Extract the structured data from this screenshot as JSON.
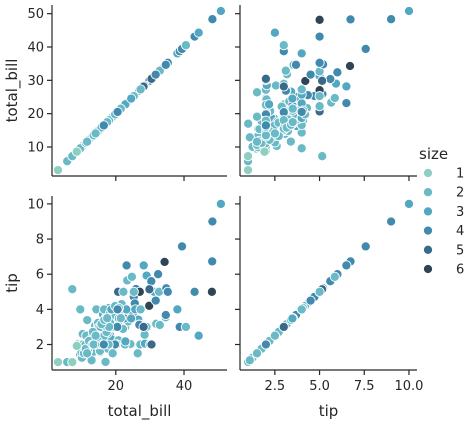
{
  "chart_data": {
    "type": "scatter",
    "kind": "pairplot",
    "variables": [
      "total_bill",
      "tip"
    ],
    "legend": {
      "title": "size",
      "placement": "right",
      "entries": [
        {
          "label": "1",
          "color": "#8ecfc1"
        },
        {
          "label": "2",
          "color": "#6ab9c6"
        },
        {
          "label": "3",
          "color": "#52a7c1"
        },
        {
          "label": "4",
          "color": "#4189ad"
        },
        {
          "label": "5",
          "color": "#3a6a8a"
        },
        {
          "label": "6",
          "color": "#2e4556"
        }
      ]
    },
    "axes": {
      "total_bill": {
        "label": "total_bill",
        "range": [
          1.3,
          52.6
        ],
        "ticks": [
          20,
          40
        ],
        "ticks_y": [
          10,
          20,
          30,
          40,
          50
        ]
      },
      "tip": {
        "label": "tip",
        "range": [
          0.55,
          10.45
        ],
        "ticks": [
          2.5,
          5.0,
          7.5,
          10.0
        ],
        "ticks_y": [
          2,
          4,
          6,
          8,
          10
        ]
      }
    },
    "grid": false,
    "points": {
      "fields": [
        "total_bill",
        "tip",
        "size"
      ],
      "values": [
        [
          3.07,
          1.0,
          1
        ],
        [
          5.75,
          1.0,
          2
        ],
        [
          7.25,
          1.0,
          1
        ],
        [
          7.25,
          5.15,
          2
        ],
        [
          8.77,
          2.0,
          2
        ],
        [
          9.55,
          1.45,
          2
        ],
        [
          10.07,
          1.25,
          2
        ],
        [
          10.34,
          2.0,
          3
        ],
        [
          10.33,
          1.67,
          2
        ],
        [
          11.02,
          1.98,
          2
        ],
        [
          12.43,
          1.8,
          2
        ],
        [
          12.46,
          1.5,
          2
        ],
        [
          13.0,
          2.0,
          2
        ],
        [
          13.42,
          1.58,
          2
        ],
        [
          13.94,
          3.06,
          2
        ],
        [
          14.31,
          4.0,
          2
        ],
        [
          14.83,
          3.02,
          2
        ],
        [
          15.04,
          1.96,
          2
        ],
        [
          15.38,
          3.0,
          2
        ],
        [
          15.42,
          1.57,
          2
        ],
        [
          15.69,
          3.0,
          3
        ],
        [
          16.29,
          3.71,
          3
        ],
        [
          16.31,
          2.0,
          3
        ],
        [
          16.97,
          3.5,
          3
        ],
        [
          16.99,
          1.01,
          2
        ],
        [
          17.46,
          2.54,
          2
        ],
        [
          17.51,
          3.0,
          2
        ],
        [
          17.78,
          3.27,
          2
        ],
        [
          17.92,
          4.08,
          2
        ],
        [
          18.15,
          3.5,
          3
        ],
        [
          18.29,
          3.76,
          2
        ],
        [
          18.35,
          2.5,
          4
        ],
        [
          18.69,
          2.31,
          3
        ],
        [
          19.44,
          3.0,
          2
        ],
        [
          19.65,
          3.0,
          2
        ],
        [
          19.82,
          3.18,
          2
        ],
        [
          20.08,
          3.15,
          3
        ],
        [
          20.29,
          3.21,
          2
        ],
        [
          20.65,
          3.35,
          3
        ],
        [
          20.69,
          5.0,
          5
        ],
        [
          20.76,
          2.24,
          2
        ],
        [
          21.01,
          3.5,
          3
        ],
        [
          21.58,
          3.92,
          2
        ],
        [
          22.23,
          5.0,
          2
        ],
        [
          22.49,
          3.5,
          2
        ],
        [
          22.76,
          3.0,
          2
        ],
        [
          23.33,
          5.65,
          2
        ],
        [
          23.68,
          3.31,
          2
        ],
        [
          24.06,
          3.6,
          3
        ],
        [
          24.55,
          2.0,
          4
        ],
        [
          24.59,
          3.61,
          4
        ],
        [
          25.0,
          3.75,
          4
        ],
        [
          25.29,
          4.71,
          4
        ],
        [
          25.56,
          4.34,
          4
        ],
        [
          25.89,
          5.16,
          4
        ],
        [
          26.41,
          1.5,
          2
        ],
        [
          26.88,
          3.12,
          4
        ],
        [
          27.18,
          2.0,
          2
        ],
        [
          27.2,
          4.0,
          4
        ],
        [
          28.55,
          2.05,
          3
        ],
        [
          28.97,
          3.0,
          2
        ],
        [
          29.03,
          5.92,
          3
        ],
        [
          29.8,
          4.2,
          6
        ],
        [
          30.06,
          2.0,
          3
        ],
        [
          30.4,
          5.6,
          4
        ],
        [
          31.27,
          5.0,
          3
        ],
        [
          31.85,
          3.18,
          2
        ],
        [
          32.4,
          6.0,
          4
        ],
        [
          32.68,
          5.0,
          2
        ],
        [
          34.3,
          6.7,
          6
        ],
        [
          34.63,
          3.55,
          2
        ],
        [
          34.81,
          5.2,
          4
        ],
        [
          35.26,
          5.0,
          4
        ],
        [
          38.07,
          4.0,
          3
        ],
        [
          38.73,
          3.0,
          4
        ],
        [
          39.42,
          7.58,
          4
        ],
        [
          40.55,
          3.0,
          2
        ],
        [
          43.11,
          5.0,
          4
        ],
        [
          44.3,
          2.5,
          3
        ],
        [
          48.17,
          5.0,
          6
        ],
        [
          48.27,
          6.73,
          4
        ],
        [
          48.33,
          9.0,
          4
        ],
        [
          50.81,
          10.0,
          3
        ],
        [
          12.6,
          2.5,
          2
        ],
        [
          13.81,
          2.0,
          2
        ],
        [
          14.15,
          2.0,
          2
        ],
        [
          15.98,
          2.03,
          2
        ],
        [
          16.58,
          4.0,
          2
        ],
        [
          17.59,
          2.64,
          3
        ],
        [
          18.24,
          3.76,
          2
        ],
        [
          19.49,
          3.51,
          2
        ],
        [
          20.23,
          2.01,
          2
        ],
        [
          21.7,
          4.3,
          2
        ],
        [
          22.42,
          3.48,
          4
        ],
        [
          23.1,
          4.0,
          3
        ],
        [
          24.01,
          2.0,
          4
        ],
        [
          24.27,
          2.03,
          2
        ],
        [
          26.59,
          3.41,
          3
        ],
        [
          27.05,
          5.0,
          6
        ],
        [
          28.17,
          6.5,
          3
        ],
        [
          29.85,
          5.14,
          5
        ],
        [
          30.46,
          2.0,
          5
        ],
        [
          32.9,
          3.11,
          2
        ],
        [
          34.65,
          3.68,
          4
        ],
        [
          11.61,
          3.39,
          2
        ],
        [
          12.54,
          2.5,
          2
        ],
        [
          13.39,
          2.61,
          2
        ],
        [
          14.78,
          3.23,
          2
        ],
        [
          15.36,
          1.64,
          2
        ],
        [
          16.45,
          2.47,
          2
        ],
        [
          17.29,
          2.71,
          2
        ],
        [
          18.71,
          4.0,
          3
        ],
        [
          19.77,
          2.0,
          4
        ],
        [
          20.9,
          3.5,
          3
        ],
        [
          21.16,
          3.0,
          2
        ],
        [
          22.12,
          2.88,
          2
        ],
        [
          23.17,
          6.5,
          4
        ],
        [
          25.71,
          4.0,
          3
        ],
        [
          26.86,
          3.14,
          2
        ],
        [
          28.44,
          2.56,
          2
        ],
        [
          9.94,
          1.56,
          2
        ],
        [
          10.29,
          2.6,
          2
        ],
        [
          11.35,
          2.5,
          2
        ],
        [
          12.74,
          2.01,
          2
        ],
        [
          13.27,
          2.5,
          2
        ],
        [
          14.52,
          2.0,
          2
        ],
        [
          15.06,
          3.0,
          2
        ],
        [
          16.21,
          2.0,
          3
        ],
        [
          17.82,
          1.75,
          2
        ],
        [
          18.26,
          3.25,
          2
        ],
        [
          19.08,
          1.5,
          2
        ],
        [
          20.45,
          3.0,
          4
        ],
        [
          22.67,
          2.0,
          2
        ],
        [
          24.71,
          5.85,
          2
        ],
        [
          26.88,
          3.12,
          4
        ],
        [
          15.53,
          3.0,
          2
        ],
        [
          13.28,
          2.72,
          2
        ],
        [
          10.65,
          1.5,
          2
        ],
        [
          11.87,
          1.63,
          2
        ],
        [
          12.9,
          1.1,
          2
        ],
        [
          14.73,
          2.2,
          2
        ],
        [
          16.93,
          3.07,
          3
        ],
        [
          17.89,
          2.0,
          2
        ],
        [
          21.5,
          3.5,
          2
        ],
        [
          22.82,
          2.18,
          3
        ],
        [
          25.28,
          5.0,
          2
        ],
        [
          9.6,
          4.0,
          2
        ],
        [
          8.58,
          1.92,
          1
        ],
        [
          11.24,
          1.76,
          2
        ],
        [
          12.16,
          2.2,
          2
        ],
        [
          13.13,
          2.0,
          2
        ],
        [
          13.51,
          2.0,
          2
        ],
        [
          16.0,
          2.0,
          2
        ],
        [
          18.04,
          3.0,
          2
        ],
        [
          19.81,
          4.19,
          2
        ],
        [
          20.92,
          4.08,
          2
        ],
        [
          15.81,
          3.16,
          2
        ],
        [
          11.59,
          1.5,
          2
        ],
        [
          14.07,
          2.5,
          2
        ],
        [
          16.66,
          3.4,
          2
        ],
        [
          17.47,
          3.5,
          2
        ],
        [
          21.48,
          3.5,
          2
        ],
        [
          24.52,
          3.48,
          3
        ],
        [
          20.53,
          4.0,
          4
        ],
        [
          16.49,
          2.0,
          4
        ],
        [
          31.71,
          4.5,
          4
        ],
        [
          28.15,
          3.0,
          5
        ],
        [
          27.28,
          4.0,
          2
        ]
      ]
    }
  }
}
